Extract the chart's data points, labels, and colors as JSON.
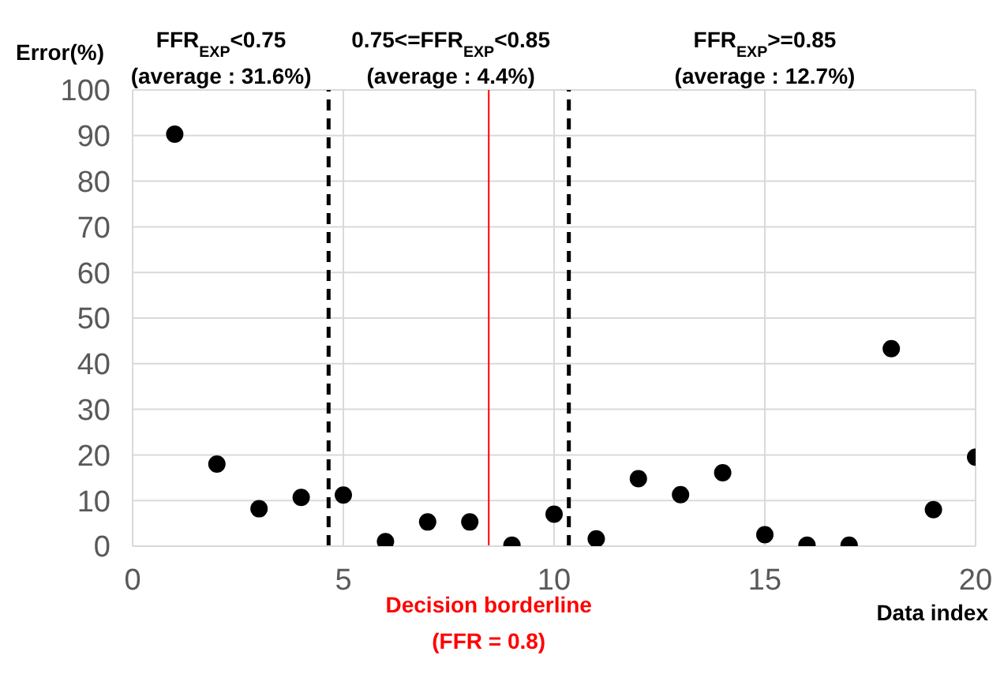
{
  "chart_data": {
    "type": "scatter",
    "xlabel": "Data index",
    "ylabel": "Error(%)",
    "x": [
      1,
      2,
      3,
      4,
      5,
      6,
      7,
      8,
      9,
      10,
      11,
      12,
      13,
      14,
      15,
      16,
      17,
      18,
      19,
      20
    ],
    "values": [
      90.3,
      18.0,
      8.2,
      10.7,
      11.2,
      1.0,
      5.3,
      5.3,
      0.2,
      7.0,
      1.6,
      14.8,
      11.3,
      16.1,
      2.5,
      0.2,
      0.2,
      43.3,
      8.0,
      19.5
    ],
    "color": "#000000",
    "marker": "circle",
    "xlim": [
      0,
      20
    ],
    "xticks": [
      0,
      5,
      10,
      15,
      20
    ],
    "ylim": [
      0,
      100
    ],
    "yticks": [
      0,
      10,
      20,
      30,
      40,
      50,
      60,
      70,
      80,
      90,
      100
    ],
    "grid": true,
    "ref_lines": [
      {
        "axis": "x",
        "value": 4.65,
        "color": "#000000",
        "line_style": "dashed"
      },
      {
        "axis": "x",
        "value": 8.45,
        "color": "#ff0000",
        "line_style": "solid"
      },
      {
        "axis": "x",
        "value": 10.35,
        "color": "#000000",
        "line_style": "dashed"
      }
    ],
    "annotations": [
      "FFR$_{EXP}$<0.75\n(average : 31.6%)",
      "0.75<=FFR$_{EXP}$<0.85\n(average : 4.4%)",
      "FFR$_{EXP}$>=0.85\n(average : 12.7%)",
      "Decision borderline\n(FFR = 0.8)"
    ]
  }
}
